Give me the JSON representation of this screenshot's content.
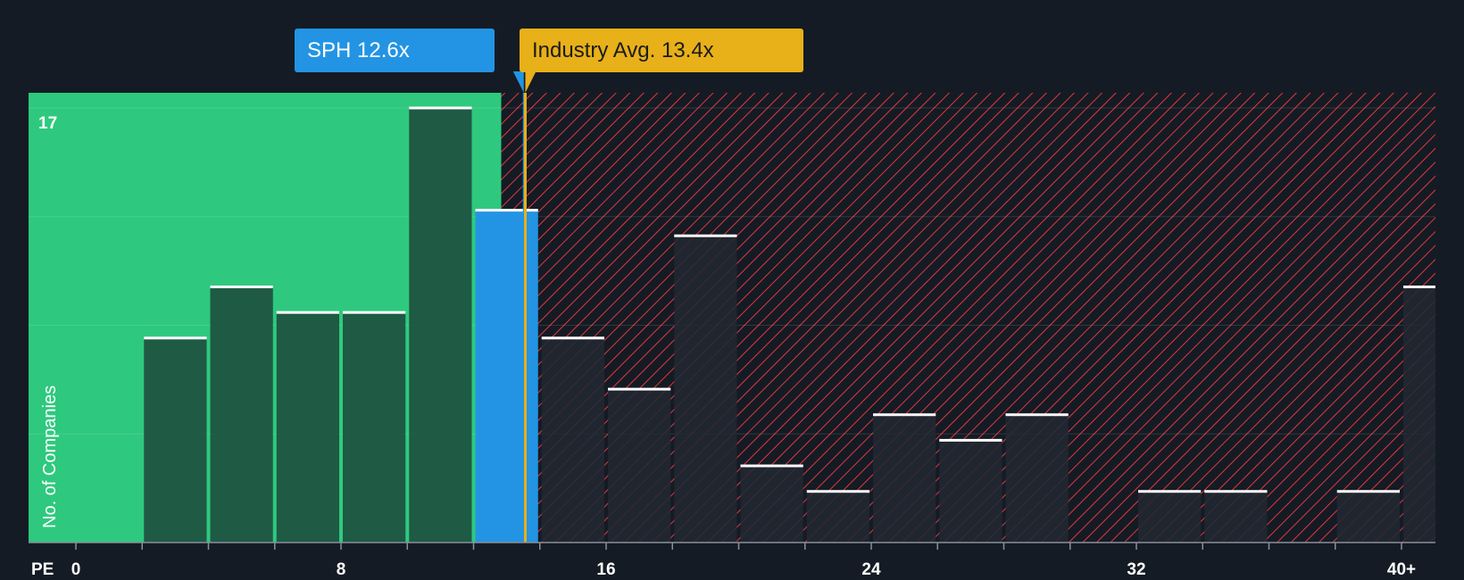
{
  "colors": {
    "background": "#151b24",
    "fair_zone": "#2ec97e",
    "bar_in_fair": "#1e4a3c",
    "bar_default": "#222832",
    "highlight_bar": "#2394e3",
    "hatch": "#e0383e",
    "company_marker": "#2394e3",
    "industry_marker": "#e8b019",
    "bar_top": "#ffffff"
  },
  "labels": {
    "company": "SPH 12.6x",
    "industry": "Industry Avg. 13.4x"
  },
  "chart_data": {
    "type": "bar",
    "xlabel": "PE",
    "ylabel": "No. of Companies",
    "xlim": [
      0,
      40
    ],
    "ylim": [
      0,
      17
    ],
    "x_ticks": [
      {
        "value": 0,
        "label": "0"
      },
      {
        "value": 8,
        "label": "8"
      },
      {
        "value": 16,
        "label": "16"
      },
      {
        "value": 24,
        "label": "24"
      },
      {
        "value": 32,
        "label": "32"
      },
      {
        "value": 40,
        "label": "40+"
      }
    ],
    "y_ticks": [
      {
        "value": 17,
        "label": "17"
      }
    ],
    "bin_width": 2,
    "bars": [
      {
        "x": 2,
        "count": 8
      },
      {
        "x": 4,
        "count": 10
      },
      {
        "x": 6,
        "count": 9
      },
      {
        "x": 8,
        "count": 9
      },
      {
        "x": 10,
        "count": 17
      },
      {
        "x": 12,
        "count": 13,
        "highlight": true
      },
      {
        "x": 14,
        "count": 8
      },
      {
        "x": 16,
        "count": 6
      },
      {
        "x": 18,
        "count": 12
      },
      {
        "x": 20,
        "count": 3
      },
      {
        "x": 22,
        "count": 2
      },
      {
        "x": 24,
        "count": 5
      },
      {
        "x": 26,
        "count": 4
      },
      {
        "x": 28,
        "count": 5
      },
      {
        "x": 32,
        "count": 2
      },
      {
        "x": 34,
        "count": 2
      },
      {
        "x": 38,
        "count": 2
      },
      {
        "x": 40,
        "count": 10
      }
    ],
    "company_pe": 12.6,
    "industry_avg_pe": 13.4,
    "fair_zone_max": 12.6,
    "legend": "none",
    "grid": true
  }
}
